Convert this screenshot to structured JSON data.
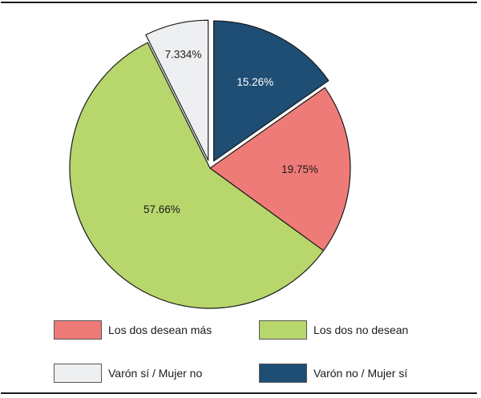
{
  "chart_data": {
    "type": "pie",
    "title": "",
    "slices": [
      {
        "name": "Varón no / Mujer sí",
        "value": 15.26,
        "label": "15.26%",
        "color": "#1f4e74",
        "exploded": true
      },
      {
        "name": "Los dos desean más",
        "value": 19.75,
        "label": "19.75%",
        "color": "#ef7b78",
        "exploded": false
      },
      {
        "name": "Los dos no desean",
        "value": 57.66,
        "label": "57.66%",
        "color": "#b7d66c",
        "exploded": false
      },
      {
        "name": "Varón sí  / Mujer no",
        "value": 7.334,
        "label": "7.334%",
        "color": "#eeeff1",
        "exploded": true
      }
    ],
    "legend_placement": "bottom",
    "legend": [
      {
        "label": "Los dos desean más",
        "color": "#ef7b78"
      },
      {
        "label": "Los dos no desean",
        "color": "#b7d66c"
      },
      {
        "label": "Varón sí  / Mujer no",
        "color": "#eeeff1"
      },
      {
        "label": "Varón no / Mujer sí",
        "color": "#1f4e74"
      }
    ]
  }
}
